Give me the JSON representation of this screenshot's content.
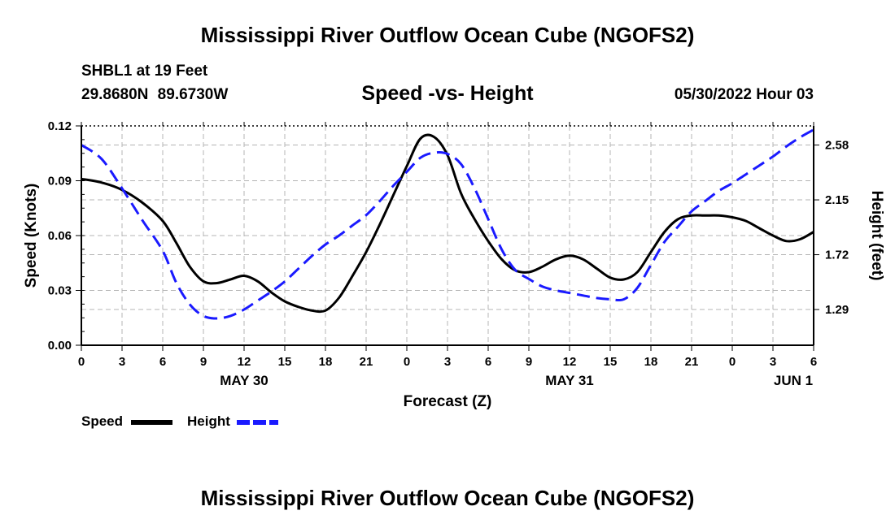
{
  "header": {
    "title": "Mississippi River Outflow Ocean Cube (NGOFS2)",
    "station": "SHBL1 at 19 Feet",
    "coords": "29.8680N  89.6730W",
    "subtitle": "Speed -vs- Height",
    "datetime": "05/30/2022 Hour 03"
  },
  "footer": {
    "title": "Mississippi River Outflow Ocean Cube (NGOFS2)"
  },
  "chart_data": {
    "type": "line",
    "title": "Speed -vs- Height",
    "xlabel": "Forecast (Z)",
    "ylabel": "Speed (Knots)",
    "y2label": "Height (feet)",
    "xlim": [
      0,
      54
    ],
    "ylim": [
      0,
      0.12
    ],
    "y2lim": [
      1.01,
      2.73
    ],
    "x_ticks": [
      0,
      3,
      6,
      9,
      12,
      15,
      18,
      21,
      24,
      27,
      30,
      33,
      36,
      39,
      42,
      45,
      48,
      51,
      54
    ],
    "x_tick_labels": [
      "0",
      "3",
      "6",
      "9",
      "12",
      "15",
      "18",
      "21",
      "0",
      "3",
      "6",
      "9",
      "12",
      "15",
      "18",
      "21",
      "0",
      "3",
      "6"
    ],
    "y_ticks": [
      0,
      0.03,
      0.06,
      0.09,
      0.12
    ],
    "y_tick_labels": [
      "0.00",
      "0.03",
      "0.06",
      "0.09",
      "0.12"
    ],
    "y2_ticks": [
      1.29,
      1.72,
      2.15,
      2.58
    ],
    "y2_tick_labels": [
      "1.29",
      "1.72",
      "2.15",
      "2.58"
    ],
    "date_labels": [
      {
        "x": 12,
        "label": "MAY 30"
      },
      {
        "x": 36,
        "label": "MAY 31"
      },
      {
        "x": 52.5,
        "label": "JUN 1"
      }
    ],
    "grid": true,
    "legend_position": "bottom-left",
    "series": [
      {
        "name": "Speed",
        "axis": "left",
        "color": "#000000",
        "style": "solid",
        "x": [
          0,
          1.5,
          3,
          4.5,
          6,
          7,
          8,
          9,
          10,
          11,
          12,
          13,
          14,
          15,
          16,
          17,
          18,
          19,
          20,
          21,
          22,
          23,
          24,
          25,
          26,
          27,
          28,
          29,
          30,
          31,
          32,
          33,
          34,
          35,
          36,
          37,
          38,
          39,
          40,
          41,
          42,
          43,
          44,
          45,
          46,
          47,
          48,
          49,
          50,
          51,
          52,
          53,
          54
        ],
        "values": [
          0.091,
          0.089,
          0.085,
          0.078,
          0.068,
          0.056,
          0.043,
          0.035,
          0.034,
          0.036,
          0.038,
          0.035,
          0.029,
          0.024,
          0.021,
          0.019,
          0.019,
          0.026,
          0.038,
          0.051,
          0.066,
          0.082,
          0.098,
          0.113,
          0.114,
          0.104,
          0.083,
          0.069,
          0.057,
          0.047,
          0.041,
          0.04,
          0.043,
          0.047,
          0.049,
          0.047,
          0.042,
          0.037,
          0.036,
          0.04,
          0.051,
          0.062,
          0.069,
          0.071,
          0.071,
          0.071,
          0.07,
          0.068,
          0.064,
          0.06,
          0.057,
          0.058,
          0.062
        ]
      },
      {
        "name": "Height",
        "axis": "right",
        "color": "#1a1aff",
        "style": "dashed",
        "x": [
          0,
          1.5,
          3,
          4.5,
          6,
          7,
          8,
          9,
          10,
          11,
          12,
          13,
          14,
          15,
          16,
          17,
          18,
          19,
          20,
          21,
          22,
          23,
          24,
          25,
          26,
          27,
          28,
          29,
          30,
          31,
          32,
          33,
          34,
          35,
          36,
          37,
          38,
          39,
          40,
          41,
          42,
          43,
          44,
          45,
          46,
          47,
          48,
          49,
          50,
          51,
          52,
          53,
          54
        ],
        "values": [
          2.58,
          2.47,
          2.24,
          1.99,
          1.75,
          1.5,
          1.33,
          1.24,
          1.22,
          1.24,
          1.29,
          1.36,
          1.43,
          1.51,
          1.61,
          1.71,
          1.8,
          1.87,
          1.95,
          2.03,
          2.14,
          2.26,
          2.37,
          2.48,
          2.52,
          2.51,
          2.43,
          2.24,
          2.0,
          1.76,
          1.6,
          1.53,
          1.47,
          1.44,
          1.42,
          1.4,
          1.38,
          1.37,
          1.37,
          1.46,
          1.64,
          1.82,
          1.94,
          2.06,
          2.14,
          2.22,
          2.28,
          2.35,
          2.42,
          2.49,
          2.57,
          2.64,
          2.7
        ]
      }
    ]
  },
  "legend": {
    "speed_label": "Speed",
    "height_label": "Height"
  }
}
